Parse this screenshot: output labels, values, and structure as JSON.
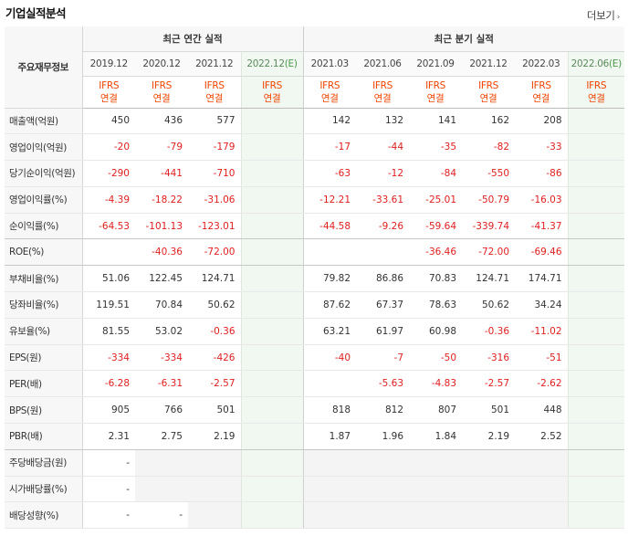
{
  "header": {
    "title": "기업실적분석",
    "more_label": "더보기"
  },
  "table": {
    "corner_label": "주요재무정보",
    "annual_group_label": "최근 연간 실적",
    "quarter_group_label": "최근 분기 실적",
    "annual_periods": [
      "2019.12",
      "2020.12",
      "2021.12",
      "2022.12"
    ],
    "annual_estimate_mark": "(E)",
    "quarter_periods": [
      "2021.03",
      "2021.06",
      "2021.09",
      "2021.12",
      "2022.03",
      "2022.06"
    ],
    "quarter_estimate_mark": "(E)",
    "ifrs_line1": "IFRS",
    "ifrs_line2": "연결",
    "rows": [
      {
        "label": "매출액(억원)",
        "annual": [
          "450",
          "436",
          "577",
          ""
        ],
        "quarter": [
          "142",
          "132",
          "141",
          "162",
          "208",
          ""
        ]
      },
      {
        "label": "영업이익(억원)",
        "annual": [
          "-20",
          "-79",
          "-179",
          ""
        ],
        "quarter": [
          "-17",
          "-44",
          "-35",
          "-82",
          "-33",
          ""
        ]
      },
      {
        "label": "당기순이익(억원)",
        "annual": [
          "-290",
          "-441",
          "-710",
          ""
        ],
        "quarter": [
          "-63",
          "-12",
          "-84",
          "-550",
          "-86",
          ""
        ]
      },
      {
        "label": "영업이익률(%)",
        "annual": [
          "-4.39",
          "-18.22",
          "-31.06",
          ""
        ],
        "quarter": [
          "-12.21",
          "-33.61",
          "-25.01",
          "-50.79",
          "-16.03",
          ""
        ]
      },
      {
        "label": "순이익률(%)",
        "annual": [
          "-64.53",
          "-101.13",
          "-123.01",
          ""
        ],
        "quarter": [
          "-44.58",
          "-9.26",
          "-59.64",
          "-339.74",
          "-41.37",
          ""
        ]
      },
      {
        "label": "ROE(%)",
        "annual": [
          "",
          "-40.36",
          "-72.00",
          ""
        ],
        "quarter": [
          "",
          "",
          "-36.46",
          "-72.00",
          "-69.46",
          ""
        ]
      },
      {
        "label": "부채비율(%)",
        "annual": [
          "51.06",
          "122.45",
          "124.71",
          ""
        ],
        "quarter": [
          "79.82",
          "86.86",
          "70.83",
          "124.71",
          "174.71",
          ""
        ]
      },
      {
        "label": "당좌비율(%)",
        "annual": [
          "119.51",
          "70.84",
          "50.62",
          ""
        ],
        "quarter": [
          "87.62",
          "67.37",
          "78.63",
          "50.62",
          "34.24",
          ""
        ]
      },
      {
        "label": "유보율(%)",
        "annual": [
          "81.55",
          "53.02",
          "-0.36",
          ""
        ],
        "quarter": [
          "63.21",
          "61.97",
          "60.98",
          "-0.36",
          "-11.02",
          ""
        ]
      },
      {
        "label": "EPS(원)",
        "annual": [
          "-334",
          "-334",
          "-426",
          ""
        ],
        "quarter": [
          "-40",
          "-7",
          "-50",
          "-316",
          "-51",
          ""
        ]
      },
      {
        "label": "PER(배)",
        "annual": [
          "-6.28",
          "-6.31",
          "-2.57",
          ""
        ],
        "quarter": [
          "",
          "-5.63",
          "-4.83",
          "-2.57",
          "-2.62",
          ""
        ]
      },
      {
        "label": "BPS(원)",
        "annual": [
          "905",
          "766",
          "501",
          ""
        ],
        "quarter": [
          "818",
          "812",
          "807",
          "501",
          "448",
          ""
        ]
      },
      {
        "label": "PBR(배)",
        "annual": [
          "2.31",
          "2.75",
          "2.19",
          ""
        ],
        "quarter": [
          "1.87",
          "1.96",
          "1.84",
          "2.19",
          "2.52",
          ""
        ]
      },
      {
        "label": "주당배당금(원)",
        "annual": [
          "-",
          "",
          "",
          ""
        ],
        "quarter": [
          "",
          "",
          "",
          "",
          "",
          ""
        ]
      },
      {
        "label": "시가배당률(%)",
        "annual": [
          "-",
          "",
          "",
          ""
        ],
        "quarter": [
          "",
          "",
          "",
          "",
          "",
          ""
        ]
      },
      {
        "label": "배당성향(%)",
        "annual": [
          "-",
          "-",
          "",
          ""
        ],
        "quarter": [
          "",
          "",
          "",
          "",
          "",
          ""
        ]
      }
    ]
  }
}
